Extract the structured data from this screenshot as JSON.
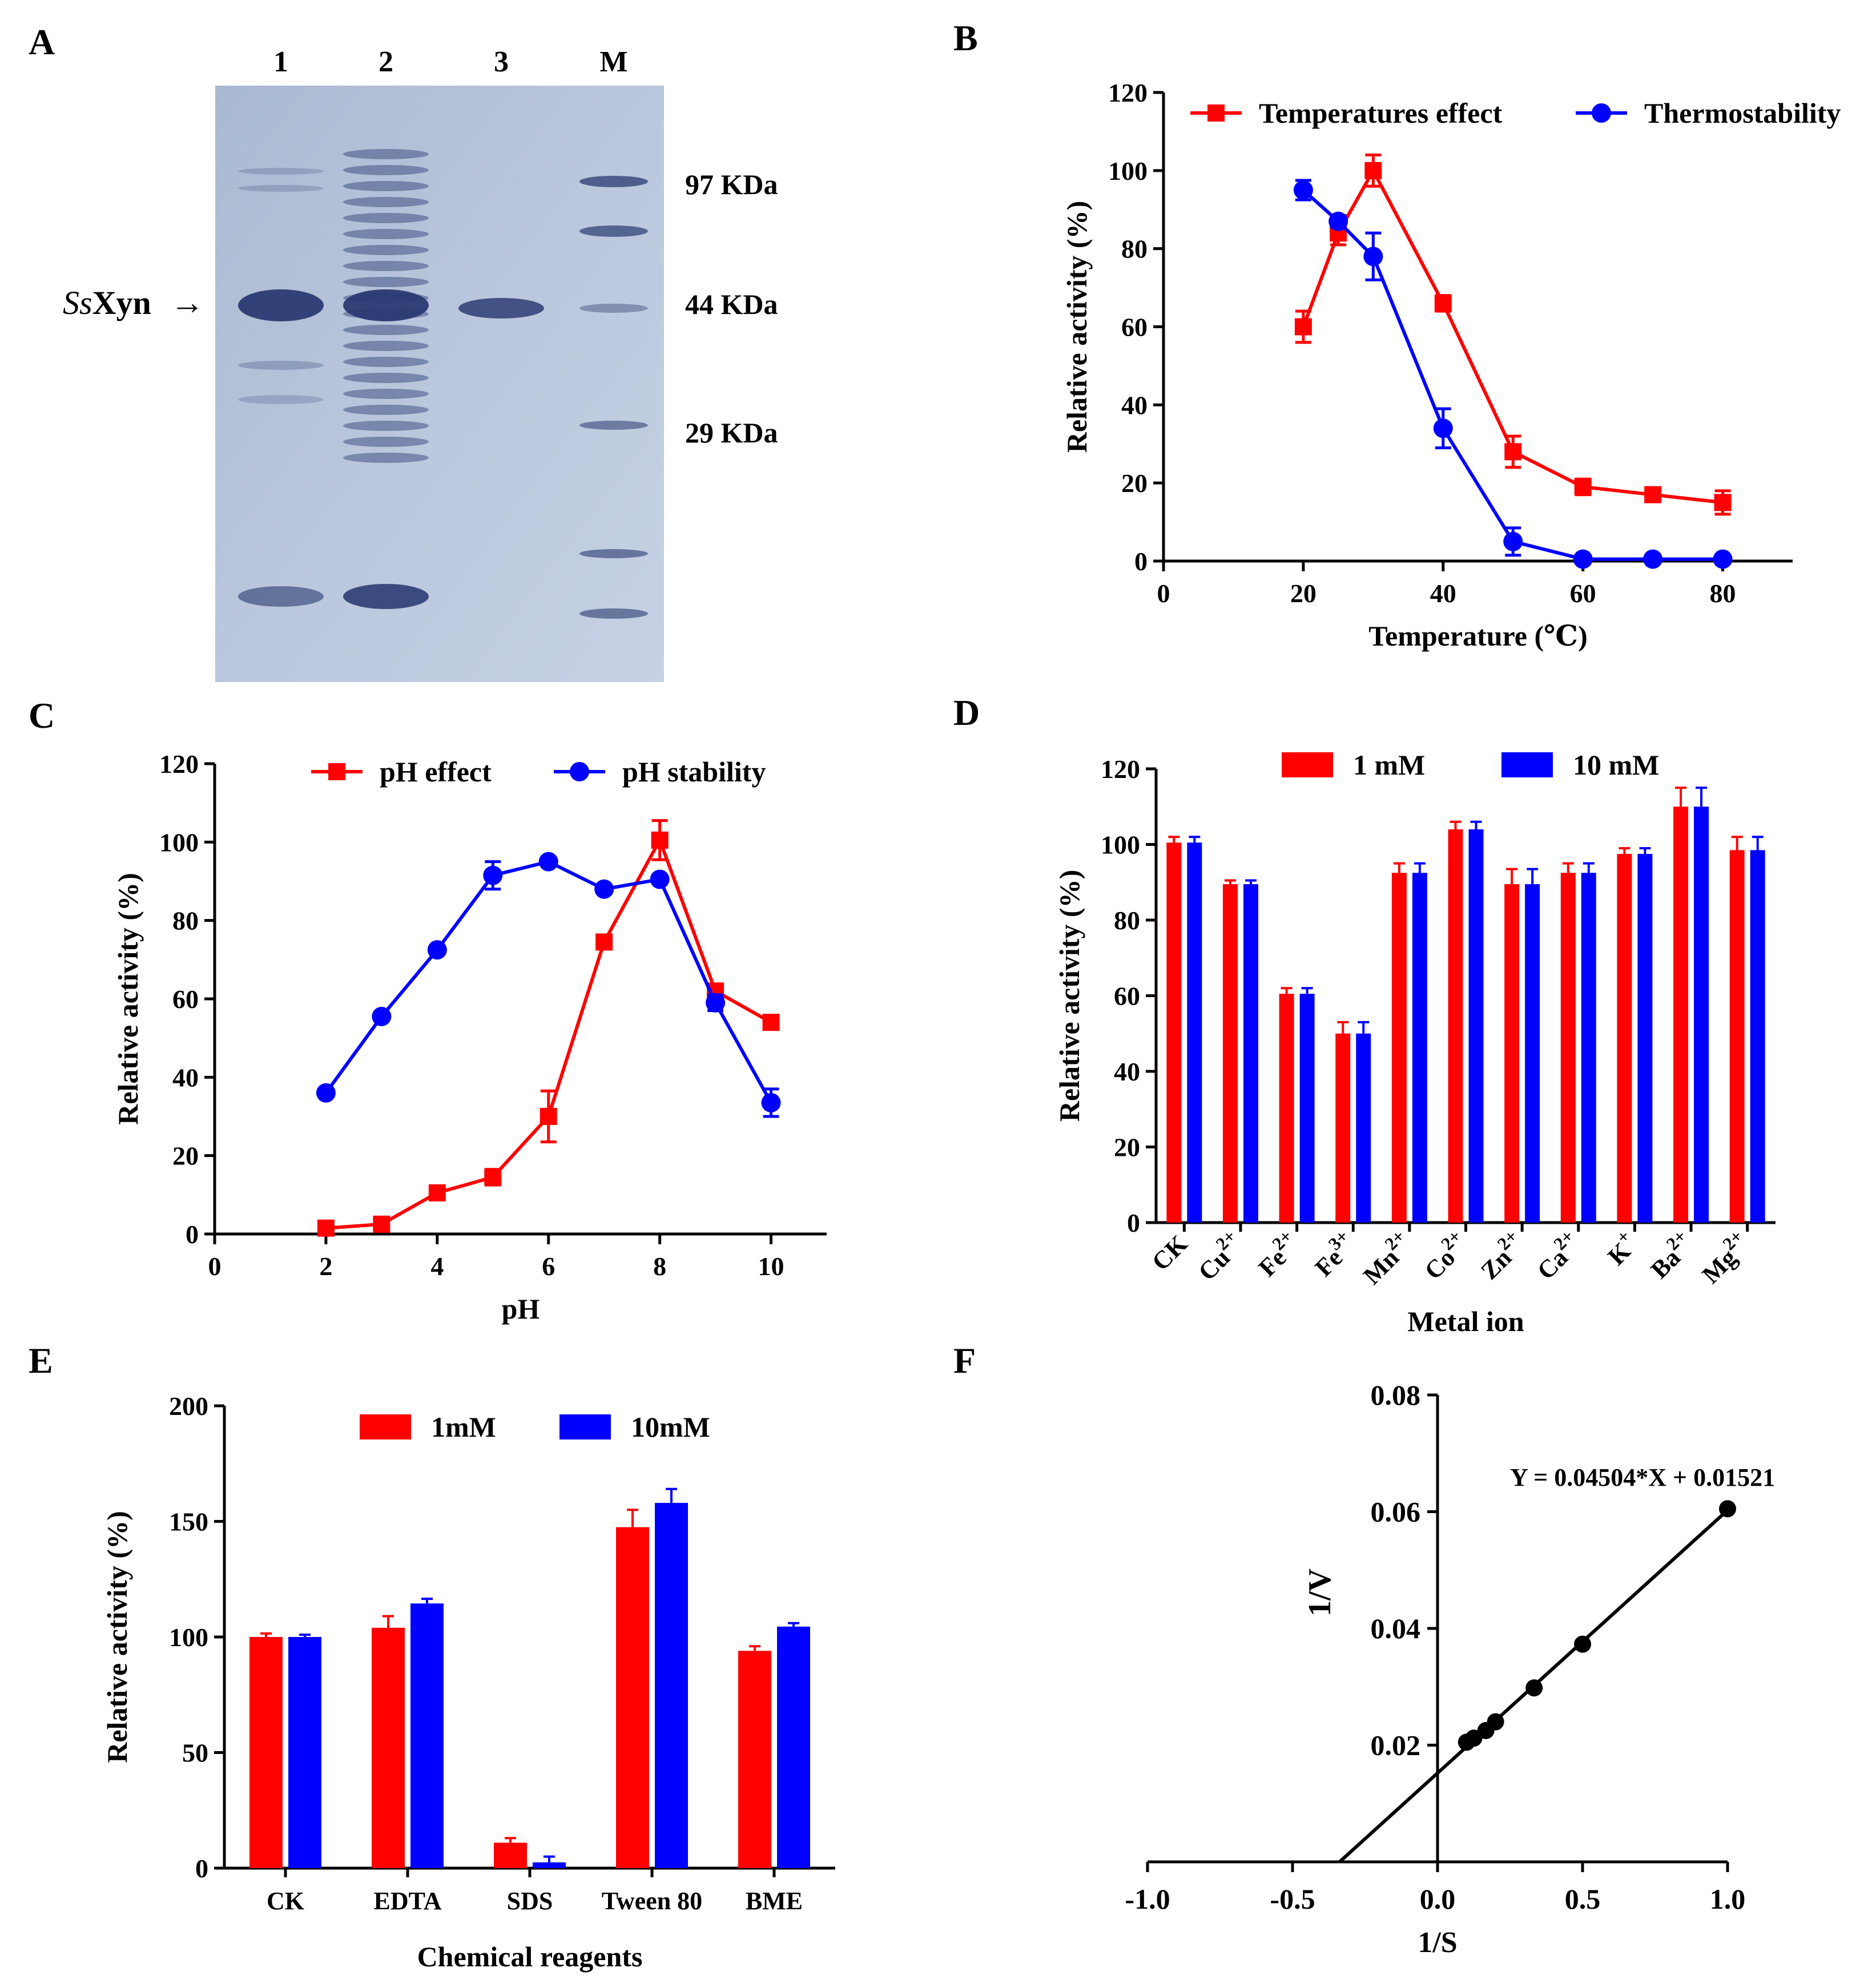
{
  "panel_letters": [
    "A",
    "B",
    "C",
    "D",
    "E",
    "F"
  ],
  "gel": {
    "lane_labels": [
      "1",
      "2",
      "3",
      "M"
    ],
    "marker_labels": [
      "97 KDa",
      "44 KDa",
      "29 KDa"
    ],
    "protein_label_italic": "Ss",
    "protein_label_rest": "Xyn",
    "arrow_glyph": "→"
  },
  "chart_data": [
    {
      "panel": "B",
      "type": "line",
      "xlabel": "Temperature (℃)",
      "ylabel": "Relative activity (%)",
      "xlim": [
        0,
        90
      ],
      "ylim": [
        0,
        120
      ],
      "xticks": [
        0,
        20,
        40,
        60,
        80
      ],
      "yticks": [
        0,
        20,
        40,
        60,
        80,
        100,
        120
      ],
      "legend_position": "top",
      "series": [
        {
          "name": "Temperatures effect",
          "color": "#ff0000",
          "marker": "square",
          "x": [
            20,
            25,
            30,
            40,
            50,
            60,
            70,
            80
          ],
          "y": [
            60,
            84,
            100,
            66,
            28,
            19,
            17,
            15
          ],
          "err": [
            4,
            3,
            4,
            2,
            4,
            2,
            1.5,
            3
          ]
        },
        {
          "name": "Thermostability",
          "color": "#0000ff",
          "marker": "circle",
          "x": [
            20,
            25,
            30,
            40,
            50,
            60,
            70,
            80
          ],
          "y": [
            95,
            87,
            78,
            34,
            5,
            0.5,
            0.5,
            0.5
          ],
          "err": [
            2.5,
            1.5,
            6,
            5,
            3.5,
            0,
            0,
            0
          ]
        }
      ]
    },
    {
      "panel": "C",
      "type": "line",
      "xlabel": "pH",
      "ylabel": "Relative activity (%)",
      "xlim": [
        0,
        11
      ],
      "ylim": [
        0,
        120
      ],
      "xticks": [
        0,
        2,
        4,
        6,
        8,
        10
      ],
      "yticks": [
        0,
        20,
        40,
        60,
        80,
        100,
        120
      ],
      "legend_position": "top",
      "series": [
        {
          "name": "pH effect",
          "color": "#ff0000",
          "marker": "square",
          "x": [
            2,
            3,
            4,
            5,
            6,
            7,
            8,
            9,
            10
          ],
          "y": [
            1.5,
            2.5,
            10.5,
            14.5,
            30,
            74.5,
            100.5,
            62,
            54
          ],
          "err": [
            0.5,
            0.5,
            1,
            2,
            6.5,
            1,
            5,
            1.5,
            1
          ]
        },
        {
          "name": "pH stability",
          "color": "#0000ff",
          "marker": "circle",
          "x": [
            2,
            3,
            4,
            5,
            6,
            7,
            8,
            9,
            10
          ],
          "y": [
            36,
            55.5,
            72.5,
            91.5,
            95,
            88,
            90.5,
            59,
            33.5
          ],
          "err": [
            1,
            1,
            1,
            3.5,
            1,
            1,
            1,
            2,
            3.5
          ]
        }
      ]
    },
    {
      "panel": "D",
      "type": "bar",
      "xlabel": "Metal ion",
      "ylabel": "Relative activity (%)",
      "ylim": [
        0,
        120
      ],
      "yticks": [
        0,
        20,
        40,
        60,
        80,
        100,
        120
      ],
      "legend_position": "top",
      "categories": [
        {
          "base": "CK",
          "sup": ""
        },
        {
          "base": "Cu",
          "sup": "2+"
        },
        {
          "base": "Fe",
          "sup": "2+"
        },
        {
          "base": "Fe",
          "sup": "3+"
        },
        {
          "base": "Mn",
          "sup": "2+"
        },
        {
          "base": "Co",
          "sup": "2+"
        },
        {
          "base": "Zn",
          "sup": "2+"
        },
        {
          "base": "Ca",
          "sup": "2+"
        },
        {
          "base": "K",
          "sup": "+"
        },
        {
          "base": "Ba",
          "sup": "2+"
        },
        {
          "base": "Mg",
          "sup": "2+"
        }
      ],
      "series": [
        {
          "name": "1 mM",
          "color": "#ff0000",
          "values": [
            100.5,
            89.5,
            60.5,
            50,
            92.5,
            104,
            89.5,
            92.5,
            97.5,
            110,
            98.5
          ],
          "err": [
            1.5,
            1,
            1.5,
            3,
            2.5,
            2,
            4,
            2.5,
            1.5,
            5,
            3.5
          ]
        },
        {
          "name": "10 mM",
          "color": "#0000ff",
          "values": [
            100.5,
            89.5,
            60.5,
            50,
            92.5,
            104,
            89.5,
            92.5,
            97.5,
            110,
            98.5
          ],
          "err": [
            1.5,
            1,
            1.5,
            3,
            2.5,
            2,
            4,
            2.5,
            1.5,
            5,
            3.5
          ]
        }
      ]
    },
    {
      "panel": "E",
      "type": "bar",
      "xlabel": "Chemical reagents",
      "ylabel": "Relative activity (%)",
      "ylim": [
        0,
        200
      ],
      "yticks": [
        0,
        50,
        100,
        150,
        200
      ],
      "legend_position": "top",
      "categories": [
        "CK",
        "EDTA",
        "SDS",
        "Tween 80",
        "BME"
      ],
      "series": [
        {
          "name": "1mM",
          "color": "#ff0000",
          "values": [
            100,
            104,
            11,
            147.5,
            94
          ],
          "err": [
            1.5,
            5,
            2,
            7.5,
            2
          ]
        },
        {
          "name": "10mM",
          "color": "#0000ff",
          "values": [
            100,
            114.5,
            2.5,
            158,
            104.5
          ],
          "err": [
            1,
            2,
            2.5,
            6,
            1.5
          ]
        }
      ]
    },
    {
      "panel": "F",
      "type": "scatter",
      "xlabel": "1/S",
      "ylabel": "1/V",
      "xlim": [
        -1.0,
        1.0
      ],
      "ylim": [
        0,
        0.08
      ],
      "xticks": [
        "-1.0",
        "-0.5",
        "0.0",
        "0.5",
        "1.0"
      ],
      "yticks": [
        "0.02",
        "0.04",
        "0.06",
        "0.08"
      ],
      "annotation": "Y = 0.04504*X + 0.01521",
      "fit": {
        "slope": 0.04504,
        "intercept": 0.01521,
        "x_start": -0.3377,
        "x_end": 1.0
      },
      "x": [
        0.1,
        0.125,
        0.1667,
        0.2,
        0.333,
        0.5,
        1.0
      ],
      "y": [
        0.0205,
        0.0212,
        0.0225,
        0.024,
        0.0298,
        0.0373,
        0.0605
      ]
    }
  ]
}
